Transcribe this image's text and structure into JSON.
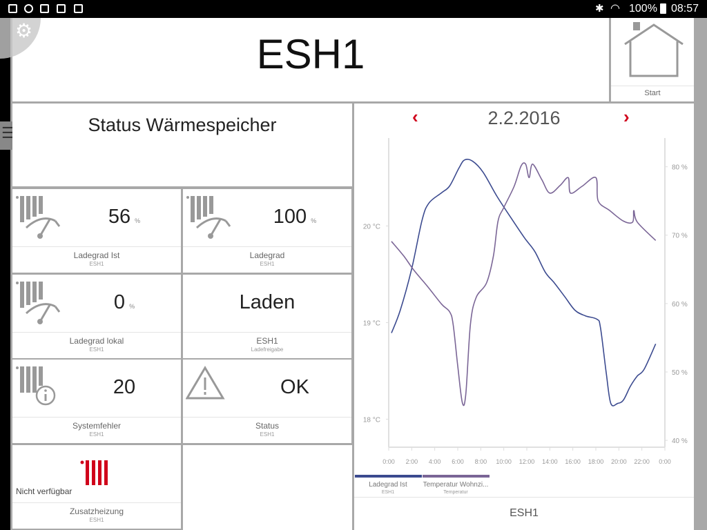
{
  "statusbar": {
    "battery": "100%",
    "time": "08:57",
    "icons": [
      "image-icon",
      "sync-icon",
      "gmail-icon",
      "store-icon",
      "tasks-icon",
      "bluetooth-icon",
      "wifi-icon",
      "battery-icon"
    ]
  },
  "header": {
    "title": "ESH1",
    "start_label": "Start"
  },
  "status_panel": {
    "title": "Status Wärmespeicher"
  },
  "tiles": [
    {
      "value": "56",
      "unit": "%",
      "label": "Ladegrad Ist",
      "sub": "ESH1",
      "icon": "storage-gauge-icon"
    },
    {
      "value": "100",
      "unit": "%",
      "label": "Ladegrad",
      "sub": "ESH1",
      "icon": "storage-gauge-icon"
    },
    {
      "value": "0",
      "unit": "%",
      "label": "Ladegrad lokal",
      "sub": "ESH1",
      "icon": "storage-gauge-icon"
    },
    {
      "value": "Laden",
      "unit": "",
      "label": "ESH1",
      "sub": "Ladefreigabe",
      "icon": ""
    },
    {
      "value": "20",
      "unit": "",
      "label": "Systemfehler",
      "sub": "ESH1",
      "icon": "storage-info-icon"
    },
    {
      "value": "OK",
      "unit": "",
      "label": "Status",
      "sub": "ESH1",
      "icon": "warning-icon"
    },
    {
      "value": "Nicht verfügbar",
      "unit": "",
      "label": "Zusatzheizung",
      "sub": "ESH1",
      "icon": "heater-red-icon"
    }
  ],
  "chart_panel": {
    "date": "2.2.2016",
    "footer": "ESH1"
  },
  "colors": {
    "accent": "#d0021b",
    "series1": "#3b4a8f",
    "series2": "#7a6596",
    "background": "#a8a8a8"
  },
  "chart_data": {
    "type": "line",
    "x_ticks": [
      "0:00",
      "2:00",
      "4:00",
      "6:00",
      "8:00",
      "10:00",
      "12:00",
      "14:00",
      "16:00",
      "18:00",
      "20:00",
      "22:00",
      "0:00"
    ],
    "xlim_hours": [
      0,
      24
    ],
    "y_left": {
      "ticks": [
        "18 °C",
        "19 °C",
        "20 °C"
      ],
      "tick_values": [
        18,
        19,
        20
      ],
      "ylim": [
        17.71,
        20.91
      ]
    },
    "y_right": {
      "ticks": [
        "40 %",
        "50 %",
        "60 %",
        "70 %",
        "80 %"
      ],
      "tick_values": [
        40,
        50,
        60,
        70,
        80
      ],
      "ylim": [
        39,
        84.2
      ]
    },
    "grid": false,
    "legend_placement": "bottom",
    "series": [
      {
        "name": "Ladegrad Ist",
        "sub": "ESH1",
        "axis": "right",
        "color": "#3b4a8f",
        "x": [
          0.24,
          1.0,
          2.0,
          2.9,
          3.5,
          4.6,
          5.3,
          6.1,
          6.6,
          7.3,
          8.2,
          9.4,
          10.6,
          11.8,
          12.7,
          13.6,
          14.4,
          15.3,
          16.2,
          17.1,
          18.1,
          18.4,
          18.9,
          19.3,
          19.9,
          20.4,
          21.0,
          21.6,
          22.2,
          23.2
        ],
        "y": [
          55.7,
          59.0,
          65.1,
          72.2,
          74.7,
          76.2,
          77.2,
          79.8,
          81.0,
          80.8,
          79.2,
          75.7,
          72.6,
          69.6,
          67.6,
          64.6,
          63.0,
          61.0,
          59.0,
          58.2,
          57.7,
          56.5,
          49.9,
          45.4,
          45.4,
          45.9,
          47.9,
          49.4,
          50.4,
          54.1
        ]
      },
      {
        "name": "Temperatur Wohnzi...",
        "sub": "Temperatur",
        "axis": "left",
        "color": "#7a6596",
        "x": [
          0.24,
          1.3,
          2.2,
          3.4,
          4.6,
          5.3,
          5.6,
          6.0,
          6.4,
          6.7,
          7.1,
          7.6,
          8.5,
          9.1,
          9.5,
          10.0,
          10.9,
          11.5,
          11.9,
          12.2,
          12.5,
          13.3,
          14.0,
          14.9,
          15.6,
          15.8,
          16.8,
          18.0,
          18.2,
          19.2,
          20.4,
          21.2,
          21.3,
          21.6,
          23.2
        ],
        "y": [
          19.84,
          19.69,
          19.54,
          19.37,
          19.19,
          19.11,
          18.98,
          18.55,
          18.17,
          18.26,
          18.98,
          19.26,
          19.41,
          19.69,
          20.05,
          20.19,
          20.41,
          20.62,
          20.64,
          20.5,
          20.64,
          20.48,
          20.34,
          20.42,
          20.5,
          20.34,
          20.41,
          20.5,
          20.26,
          20.16,
          20.05,
          20.04,
          20.16,
          20.04,
          19.85
        ]
      }
    ]
  }
}
